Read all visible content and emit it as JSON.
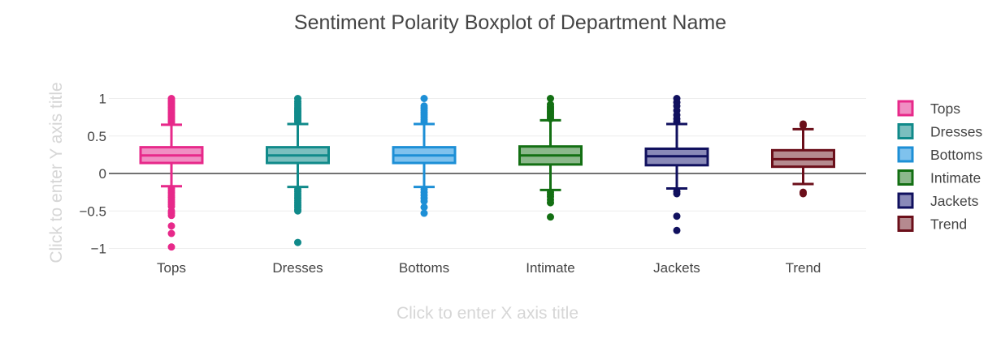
{
  "chart_data": {
    "type": "box",
    "title": "Sentiment Polarity Boxplot of Department Name",
    "xlabel_placeholder": "Click to enter X axis title",
    "ylabel_placeholder": "Click to enter Y axis title",
    "ylim": [
      -1.15,
      1.15
    ],
    "yticks": [
      1,
      0.5,
      0,
      -0.5,
      -1
    ],
    "ytick_labels": [
      "1",
      "0.5",
      "0",
      "−0.5",
      "−1"
    ],
    "grid": true,
    "legend_position": "right",
    "categories": [
      "Tops",
      "Dresses",
      "Bottoms",
      "Intimate",
      "Jackets",
      "Trend"
    ],
    "series": [
      {
        "name": "Tops",
        "color": "#e7298a",
        "fill": "#f08fc3",
        "lower_fence": -0.17,
        "q1": 0.14,
        "median": 0.24,
        "q3": 0.35,
        "upper_fence": 0.65,
        "outliers": [
          0.68,
          0.7,
          0.72,
          0.74,
          0.76,
          0.78,
          0.8,
          0.82,
          0.84,
          0.86,
          0.88,
          0.9,
          0.92,
          0.94,
          0.96,
          0.98,
          1.0,
          -0.2,
          -0.23,
          -0.26,
          -0.29,
          -0.32,
          -0.35,
          -0.38,
          -0.41,
          -0.44,
          -0.5,
          -0.53,
          -0.56,
          -0.7,
          -0.8,
          -0.98
        ]
      },
      {
        "name": "Dresses",
        "color": "#108a8a",
        "fill": "#7bbfbf",
        "lower_fence": -0.18,
        "q1": 0.14,
        "median": 0.24,
        "q3": 0.35,
        "upper_fence": 0.66,
        "outliers": [
          0.69,
          0.71,
          0.73,
          0.75,
          0.77,
          0.79,
          0.81,
          0.83,
          0.85,
          0.87,
          0.9,
          0.93,
          0.96,
          1.0,
          -0.21,
          -0.24,
          -0.27,
          -0.3,
          -0.33,
          -0.36,
          -0.39,
          -0.42,
          -0.45,
          -0.48,
          -0.5,
          -0.92
        ]
      },
      {
        "name": "Bottoms",
        "color": "#1d8fd6",
        "fill": "#7fc2ed",
        "lower_fence": -0.18,
        "q1": 0.14,
        "median": 0.24,
        "q3": 0.35,
        "upper_fence": 0.66,
        "outliers": [
          0.69,
          0.72,
          0.75,
          0.78,
          0.81,
          0.84,
          0.87,
          0.9,
          1.0,
          -0.21,
          -0.25,
          -0.29,
          -0.33,
          -0.37,
          -0.45,
          -0.53
        ]
      },
      {
        "name": "Intimate",
        "color": "#136f13",
        "fill": "#8cb88c",
        "lower_fence": -0.22,
        "q1": 0.12,
        "median": 0.24,
        "q3": 0.36,
        "upper_fence": 0.71,
        "outliers": [
          0.73,
          0.75,
          0.77,
          0.79,
          0.81,
          0.83,
          0.85,
          0.87,
          0.89,
          0.92,
          1.0,
          -0.25,
          -0.28,
          -0.31,
          -0.35,
          -0.39,
          -0.58
        ]
      },
      {
        "name": "Jackets",
        "color": "#10105e",
        "fill": "#8a8ab8",
        "lower_fence": -0.2,
        "q1": 0.11,
        "median": 0.23,
        "q3": 0.33,
        "upper_fence": 0.66,
        "outliers": [
          0.69,
          0.73,
          0.78,
          0.84,
          0.9,
          0.95,
          1.0,
          -0.24,
          -0.27,
          -0.57,
          -0.76
        ]
      },
      {
        "name": "Trend",
        "color": "#6b0f1a",
        "fill": "#b58a8f",
        "lower_fence": -0.14,
        "q1": 0.09,
        "median": 0.19,
        "q3": 0.31,
        "upper_fence": 0.59,
        "outliers": [
          0.64,
          0.66,
          -0.25,
          -0.27
        ]
      }
    ]
  }
}
